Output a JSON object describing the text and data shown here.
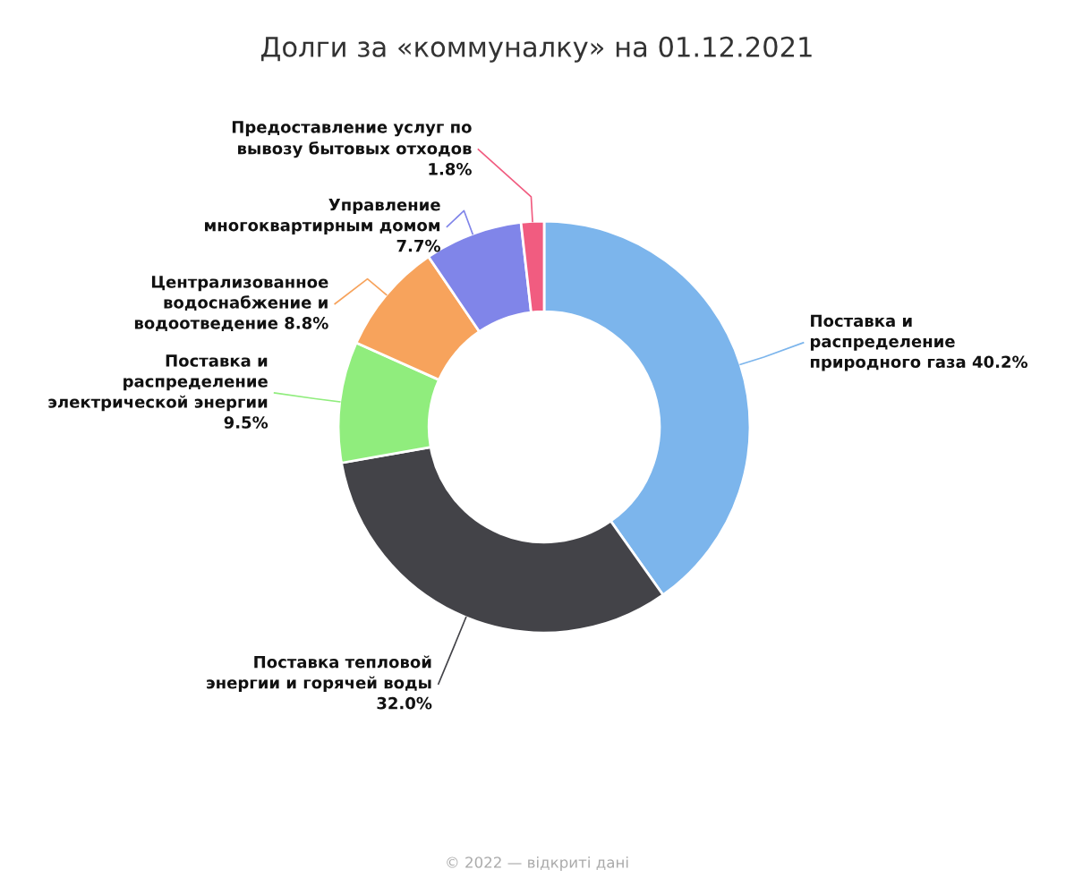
{
  "chart_data": {
    "type": "donut",
    "title": "Долги за «коммуналку» на 01.12.2021",
    "categories": [
      "Поставка и\nраспределение\nприродного газа",
      "Поставка тепловой\nэнергии и горячей воды",
      "Поставка и\nраспределение\nэлектрической энергии",
      "Централизованное\nводоснабжение и\nводоотведение",
      "Управление\nмногоквартирным домом",
      "Предоставление услуг по\nвывозу бытовых отходов"
    ],
    "values": [
      40.2,
      32.0,
      9.5,
      8.8,
      7.7,
      1.8
    ],
    "value_labels": [
      "40.2%",
      "32.0%",
      "9.5%",
      "8.8%",
      "7.7%",
      "1.8%"
    ],
    "colors": [
      "#7cb5ec",
      "#434348",
      "#90ed7d",
      "#f7a35c",
      "#8085e9",
      "#f15c80"
    ],
    "legend": false,
    "annotations": [
      "© 2022 — відкриті дані"
    ]
  }
}
